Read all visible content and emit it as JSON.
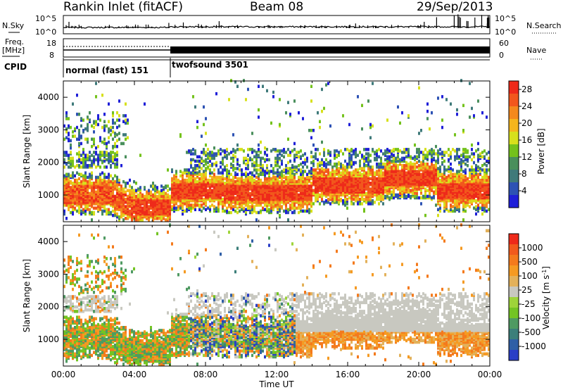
{
  "header": {
    "title": "Rankin Inlet (fitACF)",
    "beam": "Beam 08",
    "date": "29/Sep/2013"
  },
  "noise_panel": {
    "left_label": "N.Sky",
    "right_label": "N.Search",
    "left_ticks": [
      "10^5",
      "10^0"
    ],
    "right_ticks": [
      "10^5",
      "10^0"
    ]
  },
  "freq_panel": {
    "left_label_line1": "Freq.",
    "left_label_line2": "[MHz]",
    "right_label": "Nave",
    "left_ticks": [
      "18",
      "8"
    ],
    "right_ticks": [
      "60",
      "0"
    ]
  },
  "cpid_panel": {
    "label": "CPID",
    "segments": [
      {
        "start_hour": 0,
        "end_hour": 6,
        "name": "normal (fast) 151"
      },
      {
        "start_hour": 6,
        "end_hour": 24,
        "name": "twofsound 3501"
      }
    ]
  },
  "chart_data": [
    {
      "type": "heatmap",
      "id": "power",
      "ylabel": "Slant Range [km]",
      "xlabel": "",
      "xlim": [
        0,
        24
      ],
      "ylim": [
        180,
        4500
      ],
      "yticks": [
        "1000",
        "2000",
        "3000",
        "4000"
      ],
      "colorbar": {
        "label": "Power [dB]",
        "ticks": [
          "4",
          "8",
          "12",
          "16",
          "20",
          "24",
          "28"
        ],
        "range": [
          0,
          30
        ],
        "colors": [
          "#1f1fd8",
          "#2d52b4",
          "#3f7a7a",
          "#4a8f5c",
          "#74c21c",
          "#d7e01c",
          "#f5b51c",
          "#f4891c",
          "#f2571c",
          "#ee2a1a"
        ]
      }
    },
    {
      "type": "heatmap",
      "id": "velocity",
      "ylabel": "Slant Range [km]",
      "xlabel": "Time UT",
      "xlim": [
        0,
        24
      ],
      "ylim": [
        180,
        4500
      ],
      "yticks": [
        "1000",
        "2000",
        "3000",
        "4000"
      ],
      "xticks": [
        "00:00",
        "04:00",
        "08:00",
        "12:00",
        "16:00",
        "20:00",
        "00:00"
      ],
      "colorbar": {
        "label": "Velocity [m s",
        "label_superscript": "-1",
        "label_close": "]",
        "ticks": [
          "1000",
          "500",
          "100",
          "25",
          "-25",
          "-100",
          "-500",
          "-1000"
        ],
        "colors": [
          "#2a3ec6",
          "#2f5fa6",
          "#3c7f7a",
          "#4f9a62",
          "#73c424",
          "#9ed43a",
          "#c8c8c0",
          "#e3b15a",
          "#f59a22",
          "#f47a1c",
          "#f25a1c",
          "#ee2a1a"
        ]
      }
    }
  ]
}
